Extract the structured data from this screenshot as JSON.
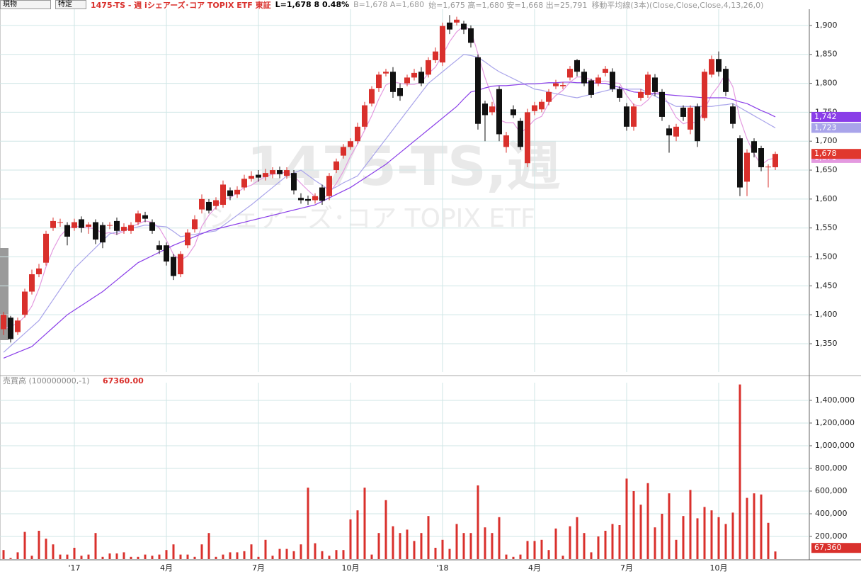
{
  "header": {
    "account": "現物",
    "tax": "特定",
    "symbol": "1475-TS - 週 iシェアーズ･コア TOPIX ETF 東証",
    "last": "L=1,678 8 0.48%",
    "quote": "B=1,678 A=1,680",
    "ohlc": "始=1,675 高=1,680 安=1,668 出=25,791",
    "study": "移動平均線(3本)(Close,Close,Close,4,13,26,0)",
    "watermark": [
      "1475-TS,週",
      "iシェアーズ･コア TOPIX ETF"
    ]
  },
  "chart_data": [
    {
      "type": "candlestick",
      "up_color": "#d9302c",
      "down_color": "#111111",
      "grid": true,
      "ylim": [
        1301,
        1944
      ],
      "yticks": [
        {
          "value": 1350,
          "label": "1,350"
        },
        {
          "value": 1400,
          "label": "1,400"
        },
        {
          "value": 1450,
          "label": "1,450"
        },
        {
          "value": 1500,
          "label": "1,500"
        },
        {
          "value": 1550,
          "label": "1,550"
        },
        {
          "value": 1600,
          "label": "1,600"
        },
        {
          "value": 1650,
          "label": "1,650"
        },
        {
          "value": 1700,
          "label": "1,700"
        },
        {
          "value": 1750,
          "label": "1,750"
        },
        {
          "value": 1800,
          "label": "1,800"
        },
        {
          "value": 1850,
          "label": "1,850"
        },
        {
          "value": 1900,
          "label": "1,900"
        }
      ],
      "open": [
        1375,
        1395,
        1370,
        1400,
        1440,
        1470,
        1490,
        1550,
        1560,
        1555,
        1550,
        1565,
        1552,
        1560,
        1555,
        1555,
        1562,
        1545,
        1545,
        1560,
        1572,
        1560,
        1520,
        1520,
        1500,
        1470,
        1520,
        1548,
        1582,
        1595,
        1588,
        1590,
        1615,
        1608,
        1620,
        1635,
        1642,
        1638,
        1643,
        1650,
        1640,
        1645,
        1602,
        1600,
        1598,
        1620,
        1605,
        1650,
        1675,
        1690,
        1700,
        1725,
        1765,
        1792,
        1817,
        1820,
        1792,
        1800,
        1810,
        1820,
        1815,
        1840,
        1836,
        1905,
        1905,
        1903,
        1895,
        1845,
        1765,
        1750,
        1790,
        1690,
        1755,
        1735,
        1662,
        1752,
        1755,
        1768,
        1795,
        1795,
        1810,
        1840,
        1820,
        1805,
        1800,
        1818,
        1820,
        1790,
        1760,
        1725,
        1775,
        1780,
        1810,
        1785,
        1722,
        1708,
        1758,
        1720,
        1760,
        1740,
        1815,
        1842,
        1825,
        1760,
        1705,
        1630,
        1700,
        1688,
        1655,
        1655
      ],
      "high": [
        1405,
        1398,
        1395,
        1445,
        1478,
        1488,
        1545,
        1568,
        1566,
        1560,
        1566,
        1570,
        1560,
        1565,
        1560,
        1560,
        1568,
        1558,
        1560,
        1580,
        1578,
        1565,
        1528,
        1525,
        1505,
        1510,
        1548,
        1572,
        1608,
        1600,
        1603,
        1632,
        1620,
        1622,
        1642,
        1648,
        1650,
        1652,
        1655,
        1656,
        1655,
        1650,
        1610,
        1606,
        1610,
        1625,
        1645,
        1670,
        1695,
        1705,
        1732,
        1768,
        1795,
        1820,
        1825,
        1828,
        1800,
        1815,
        1825,
        1828,
        1845,
        1862,
        1905,
        1918,
        1915,
        1908,
        1900,
        1850,
        1770,
        1768,
        1795,
        1716,
        1762,
        1740,
        1756,
        1768,
        1772,
        1790,
        1806,
        1802,
        1830,
        1842,
        1825,
        1808,
        1815,
        1830,
        1826,
        1795,
        1766,
        1765,
        1790,
        1820,
        1816,
        1790,
        1728,
        1730,
        1762,
        1762,
        1765,
        1825,
        1848,
        1855,
        1830,
        1765,
        1710,
        1686,
        1705,
        1692,
        1660,
        1682
      ],
      "low": [
        1365,
        1352,
        1365,
        1395,
        1435,
        1465,
        1485,
        1545,
        1552,
        1520,
        1545,
        1542,
        1540,
        1522,
        1515,
        1548,
        1538,
        1540,
        1540,
        1555,
        1560,
        1540,
        1505,
        1485,
        1460,
        1465,
        1515,
        1542,
        1575,
        1575,
        1582,
        1585,
        1598,
        1602,
        1615,
        1630,
        1630,
        1632,
        1636,
        1636,
        1635,
        1608,
        1592,
        1590,
        1592,
        1590,
        1598,
        1645,
        1670,
        1685,
        1695,
        1720,
        1760,
        1785,
        1812,
        1775,
        1770,
        1795,
        1805,
        1795,
        1810,
        1835,
        1830,
        1885,
        1900,
        1885,
        1862,
        1720,
        1700,
        1745,
        1700,
        1680,
        1740,
        1685,
        1655,
        1745,
        1750,
        1762,
        1790,
        1790,
        1805,
        1812,
        1795,
        1775,
        1795,
        1812,
        1785,
        1768,
        1718,
        1718,
        1770,
        1775,
        1778,
        1735,
        1680,
        1700,
        1735,
        1712,
        1690,
        1735,
        1810,
        1812,
        1778,
        1722,
        1605,
        1605,
        1672,
        1648,
        1620,
        1650
      ],
      "close": [
        1400,
        1358,
        1390,
        1440,
        1470,
        1480,
        1540,
        1562,
        1560,
        1535,
        1560,
        1550,
        1556,
        1530,
        1525,
        1555,
        1545,
        1552,
        1555,
        1575,
        1566,
        1545,
        1512,
        1492,
        1467,
        1505,
        1542,
        1565,
        1600,
        1580,
        1598,
        1625,
        1605,
        1616,
        1635,
        1640,
        1637,
        1645,
        1650,
        1643,
        1650,
        1615,
        1598,
        1597,
        1605,
        1597,
        1640,
        1665,
        1690,
        1700,
        1725,
        1762,
        1790,
        1815,
        1820,
        1785,
        1778,
        1810,
        1818,
        1800,
        1840,
        1855,
        1899,
        1893,
        1910,
        1893,
        1870,
        1730,
        1745,
        1760,
        1712,
        1710,
        1745,
        1690,
        1750,
        1762,
        1768,
        1785,
        1800,
        1797,
        1825,
        1820,
        1800,
        1780,
        1810,
        1825,
        1790,
        1775,
        1725,
        1760,
        1785,
        1815,
        1785,
        1742,
        1710,
        1725,
        1742,
        1758,
        1700,
        1820,
        1842,
        1820,
        1785,
        1730,
        1620,
        1680,
        1680,
        1655,
        1656,
        1678
      ],
      "last_label": "1,678",
      "last_color": "#e0382f",
      "series": [
        {
          "color": "#e49ae0",
          "last_label": "1,671",
          "values": [
            1375,
            1380,
            1385,
            1397,
            1415,
            1445,
            1483,
            1513,
            1536,
            1549,
            1554,
            1551,
            1550,
            1549,
            1540,
            1542,
            1539,
            1544,
            1552,
            1557,
            1562,
            1560,
            1550,
            1529,
            1504,
            1494,
            1502,
            1520,
            1553,
            1572,
            1586,
            1601,
            1602,
            1611,
            1620,
            1624,
            1632,
            1639,
            1643,
            1644,
            1647,
            1640,
            1627,
            1615,
            1604,
            1599,
            1610,
            1627,
            1648,
            1674,
            1695,
            1719,
            1744,
            1773,
            1797,
            1803,
            1800,
            1798,
            1798,
            1802,
            1817,
            1828,
            1849,
            1872,
            1889,
            1899,
            1892,
            1851,
            1810,
            1776,
            1737,
            1732,
            1732,
            1714,
            1724,
            1737,
            1743,
            1766,
            1779,
            1788,
            1802,
            1811,
            1811,
            1806,
            1803,
            1804,
            1801,
            1800,
            1779,
            1763,
            1761,
            1771,
            1786,
            1782,
            1763,
            1741,
            1730,
            1734,
            1731,
            1755,
            1780,
            1796,
            1817,
            1794,
            1739,
            1704,
            1678,
            1659,
            1668,
            1671
          ]
        },
        {
          "color": "#a9a4ea",
          "last_label": "1,723",
          "values": [
            1335,
            1346,
            1357,
            1368,
            1379,
            1390,
            1408,
            1426,
            1444,
            1462,
            1480,
            1492,
            1504,
            1516,
            1528,
            1540,
            1543,
            1546,
            1549,
            1552,
            1555,
            1554,
            1553,
            1552,
            1544,
            1535,
            1537,
            1539,
            1541,
            1543,
            1545,
            1554,
            1563,
            1572,
            1581,
            1590,
            1600,
            1610,
            1620,
            1630,
            1640,
            1645,
            1650,
            1641,
            1632,
            1624,
            1615,
            1621,
            1628,
            1634,
            1640,
            1656,
            1672,
            1688,
            1704,
            1720,
            1736,
            1752,
            1768,
            1784,
            1800,
            1810,
            1820,
            1830,
            1840,
            1850,
            1848,
            1845,
            1837,
            1828,
            1820,
            1814,
            1808,
            1802,
            1796,
            1790,
            1788,
            1785,
            1782,
            1780,
            1777,
            1775,
            1778,
            1781,
            1784,
            1787,
            1790,
            1790,
            1790,
            1790,
            1790,
            1784,
            1778,
            1772,
            1766,
            1760,
            1760,
            1760,
            1760,
            1760,
            1760,
            1762,
            1763,
            1765,
            1758,
            1751,
            1744,
            1737,
            1730,
            1723
          ]
        },
        {
          "color": "#8a3ee8",
          "last_label": "1,742",
          "values": [
            1325,
            1330,
            1335,
            1340,
            1345,
            1356,
            1367,
            1378,
            1389,
            1400,
            1408,
            1416,
            1424,
            1432,
            1440,
            1450,
            1460,
            1470,
            1480,
            1490,
            1496,
            1502,
            1508,
            1514,
            1520,
            1525,
            1530,
            1535,
            1540,
            1545,
            1548,
            1551,
            1554,
            1557,
            1560,
            1563,
            1566,
            1569,
            1572,
            1575,
            1578,
            1581,
            1584,
            1587,
            1590,
            1596,
            1602,
            1608,
            1614,
            1620,
            1628,
            1636,
            1644,
            1652,
            1660,
            1670,
            1680,
            1690,
            1700,
            1710,
            1720,
            1730,
            1740,
            1750,
            1760,
            1773,
            1785,
            1788,
            1792,
            1795,
            1796,
            1796,
            1797,
            1798,
            1799,
            1799,
            1800,
            1801,
            1801,
            1802,
            1802,
            1801,
            1801,
            1801,
            1800,
            1800,
            1796,
            1793,
            1789,
            1785,
            1784,
            1783,
            1782,
            1781,
            1780,
            1779,
            1778,
            1777,
            1776,
            1775,
            1775,
            1775,
            1775,
            1772,
            1768,
            1765,
            1759,
            1753,
            1748,
            1742
          ]
        }
      ]
    },
    {
      "type": "bar",
      "title": "売買高 (100000000,-1)",
      "last_value_label": "67360.00",
      "color": "#d9302c",
      "grid": true,
      "ylim": [
        0,
        1556000
      ],
      "yticks": [
        {
          "value": 200000,
          "label": "200,000"
        },
        {
          "value": 400000,
          "label": "400,000"
        },
        {
          "value": 600000,
          "label": "600,000"
        },
        {
          "value": 800000,
          "label": "800,000"
        },
        {
          "value": 1000000,
          "label": "1,000,000"
        },
        {
          "value": 1200000,
          "label": "1,200,000"
        },
        {
          "value": 1400000,
          "label": "1,400,000"
        }
      ],
      "categories": [
        null,
        null,
        null,
        null,
        null,
        null,
        null,
        null,
        null,
        null,
        "'17",
        null,
        null,
        null,
        null,
        null,
        null,
        null,
        null,
        null,
        null,
        null,
        null,
        "4月",
        null,
        null,
        null,
        null,
        null,
        null,
        null,
        null,
        null,
        null,
        null,
        null,
        "7月",
        null,
        null,
        null,
        null,
        null,
        null,
        null,
        null,
        null,
        null,
        null,
        null,
        "10月",
        null,
        null,
        null,
        null,
        null,
        null,
        null,
        null,
        null,
        null,
        null,
        null,
        "'18",
        null,
        null,
        null,
        null,
        null,
        null,
        null,
        null,
        null,
        null,
        null,
        null,
        "4月",
        null,
        null,
        null,
        null,
        null,
        null,
        null,
        null,
        null,
        null,
        null,
        null,
        "7月",
        null,
        null,
        null,
        null,
        null,
        null,
        null,
        null,
        null,
        null,
        null,
        null,
        "10月",
        null,
        null,
        null,
        null,
        null,
        null,
        null,
        null
      ],
      "values": [
        80000,
        10000,
        60000,
        240000,
        30000,
        250000,
        180000,
        130000,
        40000,
        40000,
        100000,
        30000,
        40000,
        230000,
        20000,
        50000,
        50000,
        60000,
        20000,
        20000,
        40000,
        30000,
        40000,
        80000,
        130000,
        40000,
        40000,
        20000,
        130000,
        230000,
        20000,
        40000,
        60000,
        60000,
        70000,
        130000,
        20000,
        170000,
        30000,
        90000,
        90000,
        70000,
        130000,
        630000,
        140000,
        70000,
        30000,
        80000,
        80000,
        350000,
        430000,
        630000,
        40000,
        230000,
        520000,
        290000,
        230000,
        260000,
        160000,
        230000,
        380000,
        100000,
        170000,
        90000,
        310000,
        230000,
        230000,
        650000,
        280000,
        230000,
        370000,
        40000,
        20000,
        40000,
        160000,
        160000,
        170000,
        80000,
        270000,
        30000,
        290000,
        370000,
        230000,
        60000,
        200000,
        250000,
        310000,
        300000,
        710000,
        600000,
        480000,
        670000,
        280000,
        400000,
        580000,
        170000,
        380000,
        610000,
        360000,
        460000,
        430000,
        370000,
        310000,
        410000,
        1540000,
        540000,
        580000,
        570000,
        320000,
        67360
      ],
      "last_label": "67,360"
    }
  ]
}
